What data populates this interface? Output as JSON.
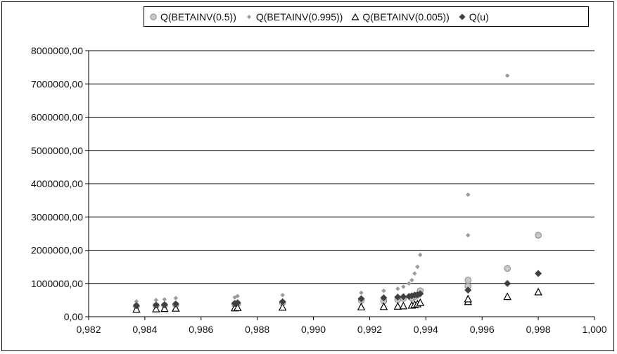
{
  "chart_data": {
    "type": "scatter",
    "title": "",
    "xlabel": "",
    "ylabel": "",
    "xlim": [
      0.982,
      1.0
    ],
    "ylim": [
      0,
      8000000
    ],
    "x_ticks": [
      0.982,
      0.984,
      0.986,
      0.988,
      0.99,
      0.992,
      0.994,
      0.996,
      0.998,
      1.0
    ],
    "x_tick_labels": [
      "0,982",
      "0,984",
      "0,986",
      "0,988",
      "0,990",
      "0,992",
      "0,994",
      "0,996",
      "0,998",
      "1,000"
    ],
    "y_ticks": [
      0,
      1000000,
      2000000,
      3000000,
      4000000,
      5000000,
      6000000,
      7000000,
      8000000
    ],
    "y_tick_labels": [
      "0,00",
      "1000000,00",
      "2000000,00",
      "3000000,00",
      "4000000,00",
      "5000000,00",
      "6000000,00",
      "7000000,00",
      "8000000,00"
    ],
    "grid": "horizontal",
    "legend_position": "top",
    "series": [
      {
        "name": "Q(BETAINV(0.5))",
        "marker": "circle",
        "color": "#c8c8c8",
        "x": [
          0.9837,
          0.9844,
          0.9847,
          0.9851,
          0.9872,
          0.9873,
          0.9889,
          0.9917,
          0.9925,
          0.993,
          0.9932,
          0.9935,
          0.9936,
          0.9937,
          0.9938,
          0.9955,
          0.9955,
          0.9969,
          0.998
        ],
        "y": [
          320000,
          330000,
          340000,
          360000,
          380000,
          390000,
          420000,
          490000,
          470000,
          510000,
          550000,
          560000,
          600000,
          650000,
          780000,
          920000,
          1100000,
          1450000,
          2450000
        ]
      },
      {
        "name": "Q(BETAINV(0.995))",
        "marker": "small-diamond",
        "color": "#9a9a9a",
        "x": [
          0.9837,
          0.9844,
          0.9847,
          0.9851,
          0.9872,
          0.9873,
          0.9889,
          0.9917,
          0.9925,
          0.993,
          0.9932,
          0.9934,
          0.9935,
          0.9936,
          0.9937,
          0.9938,
          0.9955,
          0.9955,
          0.9969
        ],
        "y": [
          460000,
          500000,
          520000,
          560000,
          580000,
          620000,
          650000,
          720000,
          780000,
          840000,
          900000,
          1000000,
          1100000,
          1300000,
          1500000,
          1860000,
          2450000,
          3670000,
          7250000
        ]
      },
      {
        "name": "Q(BETAINV(0.005))",
        "marker": "triangle",
        "color": "#000000",
        "x": [
          0.9837,
          0.9844,
          0.9847,
          0.9851,
          0.9872,
          0.9873,
          0.9889,
          0.9917,
          0.9925,
          0.993,
          0.9932,
          0.9935,
          0.9936,
          0.9937,
          0.9938,
          0.9955,
          0.9955,
          0.9969,
          0.998
        ],
        "y": [
          220000,
          230000,
          240000,
          250000,
          260000,
          270000,
          280000,
          290000,
          300000,
          310000,
          320000,
          340000,
          360000,
          380000,
          420000,
          450000,
          530000,
          600000,
          740000
        ]
      },
      {
        "name": "Q(u)",
        "marker": "diamond",
        "color": "#404040",
        "x": [
          0.9837,
          0.9844,
          0.9847,
          0.9851,
          0.9872,
          0.9873,
          0.9889,
          0.9917,
          0.9925,
          0.993,
          0.9932,
          0.9934,
          0.9935,
          0.9936,
          0.9937,
          0.9938,
          0.9955,
          0.9969,
          0.998
        ],
        "y": [
          330000,
          350000,
          360000,
          380000,
          400000,
          420000,
          450000,
          540000,
          570000,
          590000,
          600000,
          610000,
          630000,
          650000,
          660000,
          690000,
          800000,
          1000000,
          1300000
        ]
      }
    ]
  }
}
